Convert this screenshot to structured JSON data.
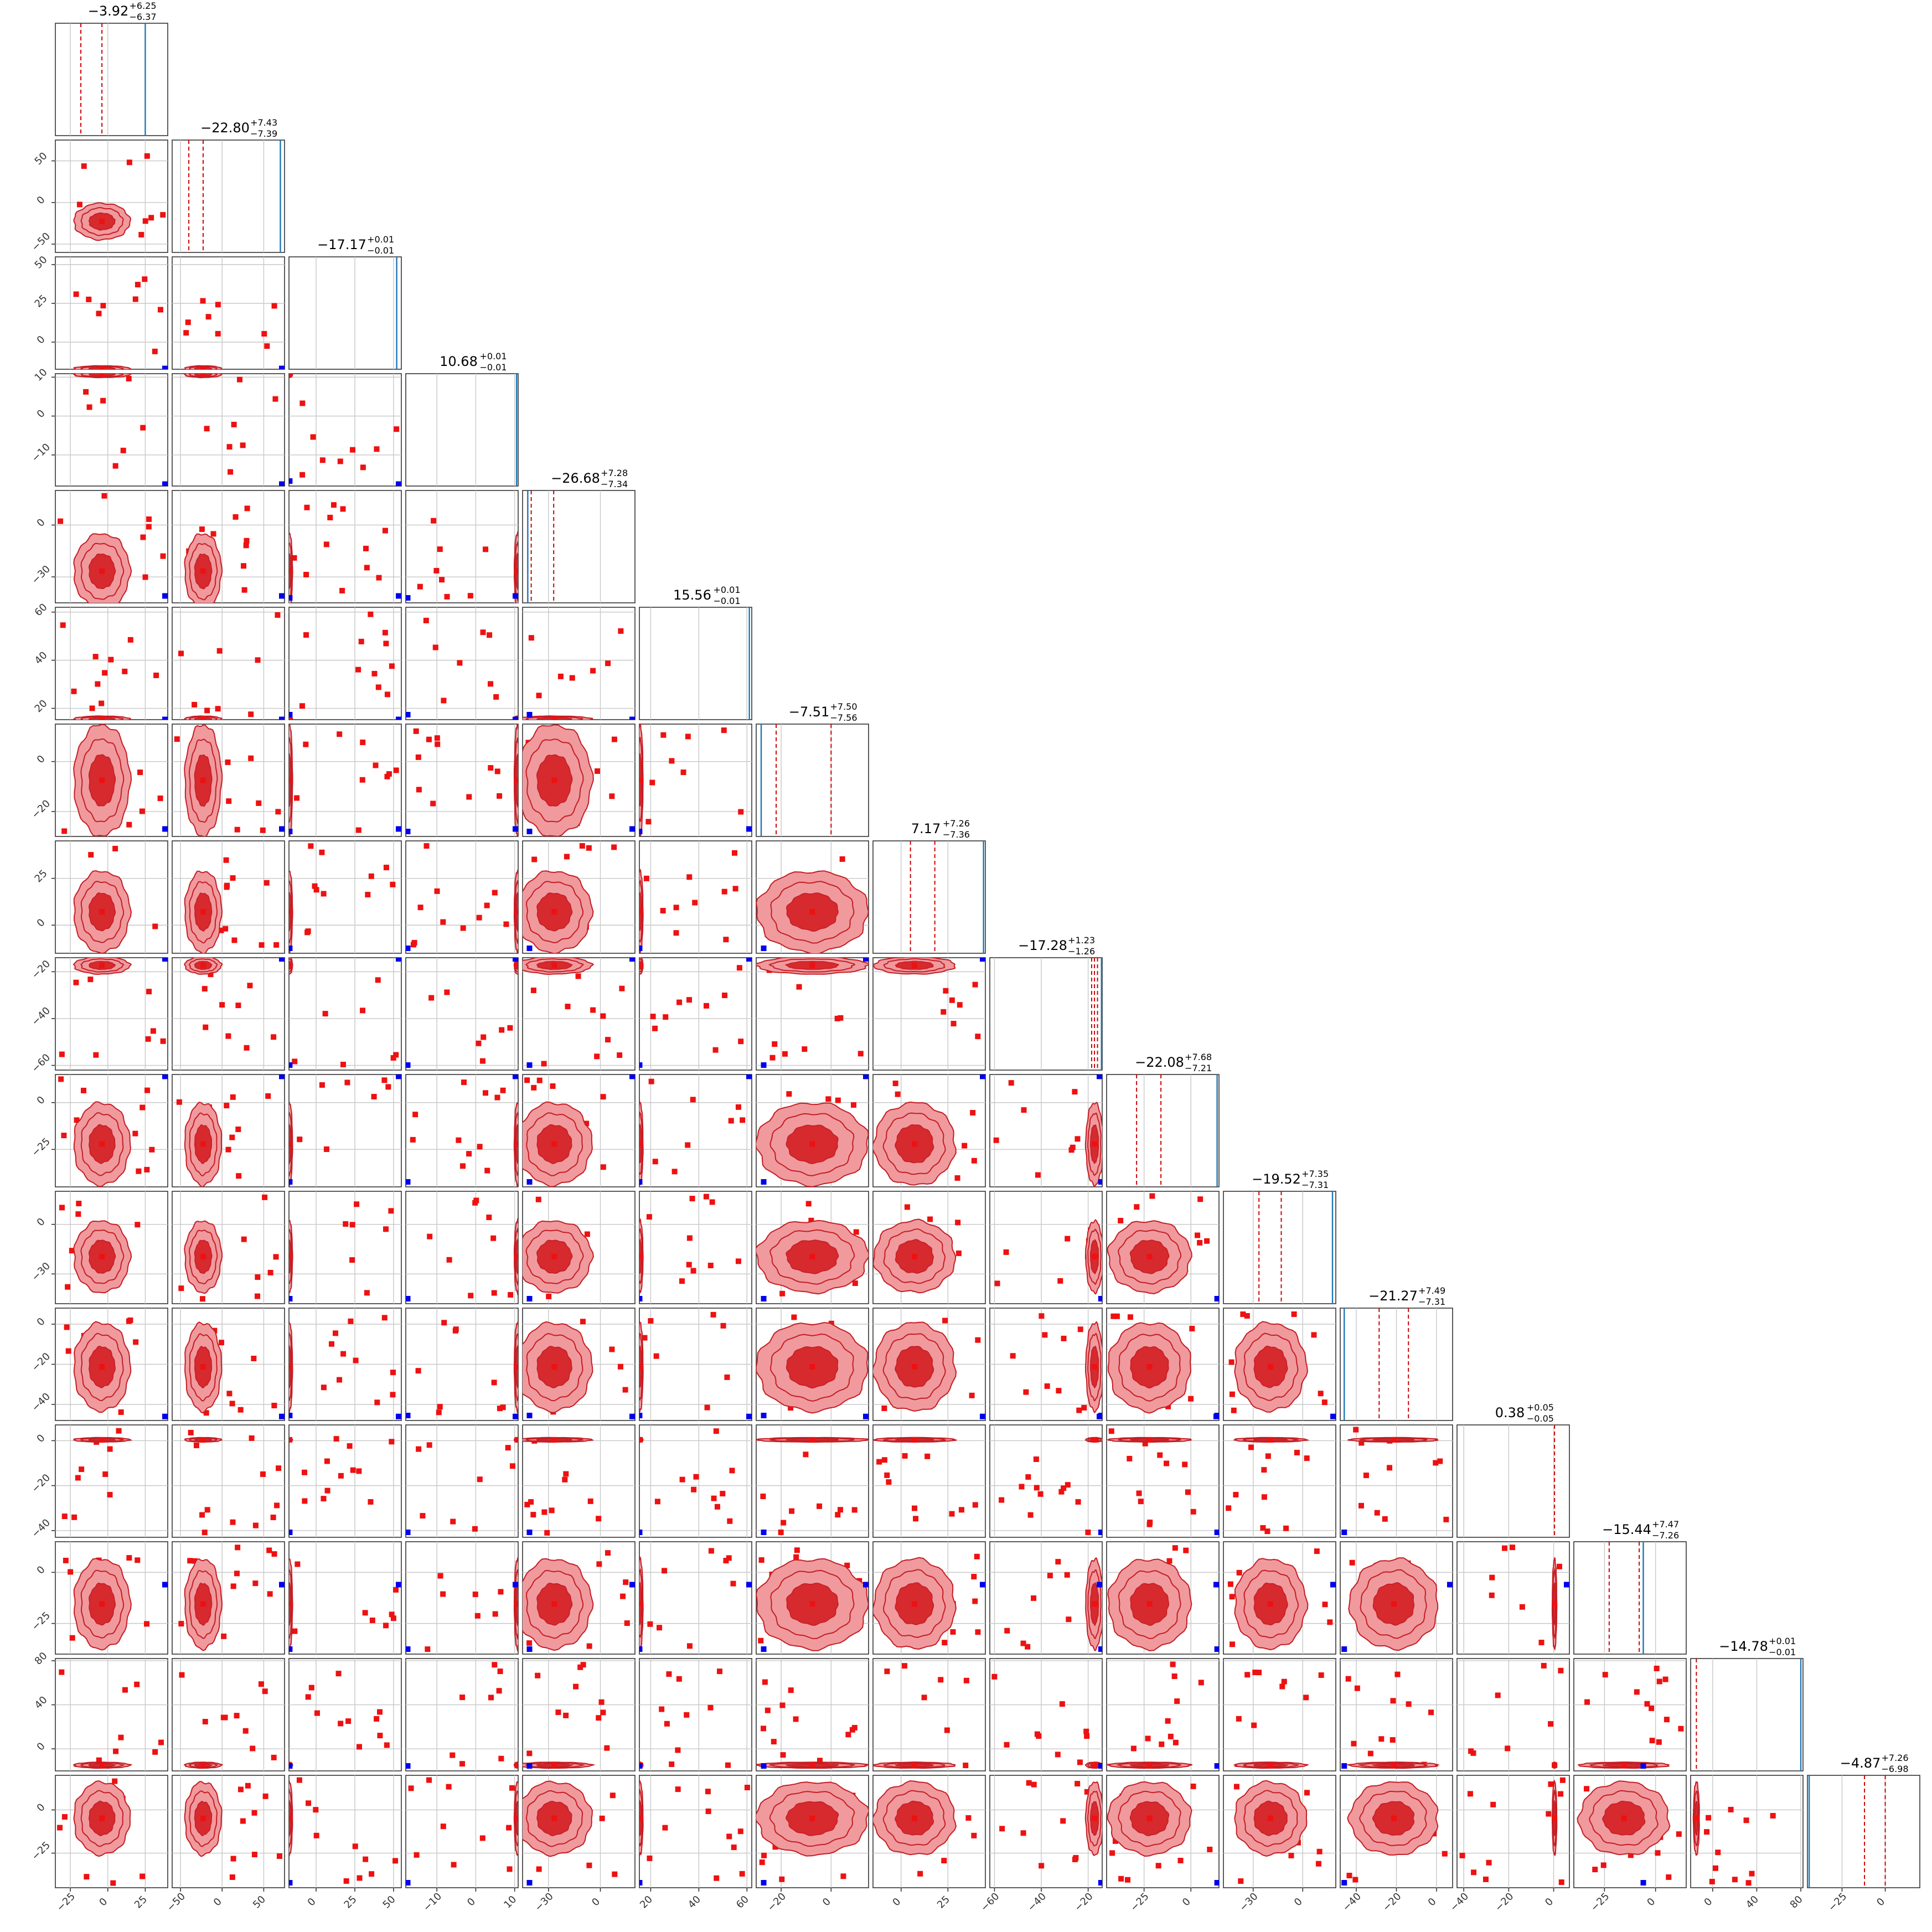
{
  "chart_data": {
    "type": "scatter",
    "subtype": "corner-plot",
    "n_params": 16,
    "grid": true,
    "colors": {
      "contour_line": "#c41e24",
      "contour_outer": "#f09a9e",
      "contour_inner": "#d62a2f",
      "point": "#ee1111",
      "truth": "#0000ee",
      "quantile_line": "#cc0000",
      "hist": "#1f77b4"
    },
    "params": [
      {
        "median": "−3.92",
        "plus": "+6.25",
        "minus": "−6.37",
        "lim": [
          -35,
          40
        ],
        "ticks": [
          -25,
          0,
          25
        ],
        "ticklabels": [
          "−25",
          "0",
          "25"
        ],
        "mode": "normal",
        "median_v": -3.92,
        "sd": 6.3,
        "q": [
          -18,
          -3.92
        ],
        "truth": null,
        "truth_hist": 25
      },
      {
        "median": "−22.80",
        "plus": "+7.43",
        "minus": "−7.39",
        "lim": [
          -60,
          75
        ],
        "ticks": [
          -50,
          0,
          50
        ],
        "ticklabels": [
          "−50",
          "0",
          "50"
        ],
        "mode": "normal",
        "median_v": -22.8,
        "sd": 7.4,
        "q": [
          -40,
          -22.8
        ],
        "truth": null,
        "truth_hist": 70
      },
      {
        "median": "−17.17",
        "plus": "+0.01",
        "minus": "−0.01",
        "lim": [
          -17.5,
          55
        ],
        "ticks": [
          0,
          25,
          50
        ],
        "ticklabels": [
          "0",
          "25",
          "50"
        ],
        "mode": "flat",
        "median_v": -17.17,
        "sd": 0.01,
        "q": [],
        "truth": -17.0,
        "truth_hist": 52
      },
      {
        "median": "10.68",
        "plus": "+0.01",
        "minus": "−0.01",
        "lim": [
          -18,
          10.9
        ],
        "ticks": [
          -10,
          0,
          10
        ],
        "ticklabels": [
          "−10",
          "0",
          "10"
        ],
        "mode": "flat",
        "median_v": 10.68,
        "sd": 0.01,
        "q": [],
        "truth": -17.5,
        "truth_hist": 10.5
      },
      {
        "median": "−26.68",
        "plus": "+7.28",
        "minus": "−7.34",
        "lim": [
          -45,
          20
        ],
        "ticks": [
          -30,
          0
        ],
        "ticklabels": [
          "−30",
          "0"
        ],
        "mode": "normal",
        "median_v": -26.68,
        "sd": 7.3,
        "q": [
          -42,
          -40,
          -27
        ],
        "truth": -41,
        "truth_hist": -42
      },
      {
        "median": "15.56",
        "plus": "+0.01",
        "minus": "−0.01",
        "lim": [
          15.3,
          62
        ],
        "ticks": [
          20,
          40,
          60
        ],
        "ticklabels": [
          "20",
          "40",
          "60"
        ],
        "mode": "flat",
        "median_v": 15.56,
        "sd": 0.01,
        "q": [],
        "truth": 15.4,
        "truth_hist": 61
      },
      {
        "median": "−7.51",
        "plus": "+7.50",
        "minus": "−7.56",
        "lim": [
          -30,
          15
        ],
        "ticks": [
          -20,
          0
        ],
        "ticklabels": [
          "−20",
          "0"
        ],
        "mode": "normal",
        "median_v": -7.51,
        "sd": 7.5,
        "q": [
          -28,
          -22,
          0
        ],
        "truth": -27,
        "truth_hist": -28
      },
      {
        "median": "7.17",
        "plus": "+7.26",
        "minus": "−7.36",
        "lim": [
          -15,
          45
        ],
        "ticks": [
          0,
          25
        ],
        "ticklabels": [
          "0",
          "25"
        ],
        "mode": "normal",
        "median_v": 7.17,
        "sd": 7.3,
        "q": [
          5,
          18
        ],
        "truth": null,
        "truth_hist": 44
      },
      {
        "median": "−17.28",
        "plus": "+1.23",
        "minus": "−1.26",
        "lim": [
          -62,
          -14
        ],
        "ticks": [
          -60,
          -40,
          -20
        ],
        "ticklabels": [
          "−60",
          "−40",
          "−20"
        ],
        "mode": "narrow",
        "median_v": -17.28,
        "sd": 1.25,
        "q": [
          -18.5,
          -17.3,
          -16
        ],
        "truth": -14.5,
        "truth_hist": -14.3
      },
      {
        "median": "−22.08",
        "plus": "+7.68",
        "minus": "−7.21",
        "lim": [
          -45,
          15
        ],
        "ticks": [
          -25,
          0
        ],
        "ticklabels": [
          "−25",
          "0"
        ],
        "mode": "normal",
        "median_v": -22.08,
        "sd": 7.4,
        "q": [
          -29,
          -16
        ],
        "truth": 14,
        "truth_hist": 14
      },
      {
        "median": "−19.52",
        "plus": "+7.35",
        "minus": "−7.31",
        "lim": [
          -48,
          20
        ],
        "ticks": [
          -30,
          0
        ],
        "ticklabels": [
          "−30",
          "0"
        ],
        "mode": "normal",
        "median_v": -19.52,
        "sd": 7.3,
        "q": [
          -26.5,
          -13
        ],
        "truth": null,
        "truth_hist": 18
      },
      {
        "median": "−21.27",
        "plus": "+7.49",
        "minus": "−7.31",
        "lim": [
          -48,
          8
        ],
        "ticks": [
          -40,
          -20,
          0
        ],
        "ticklabels": [
          "−40",
          "−20",
          "0"
        ],
        "mode": "normal",
        "median_v": -21.27,
        "sd": 7.4,
        "q": [
          -28.6,
          -14
        ],
        "truth": -46,
        "truth_hist": -46
      },
      {
        "median": "0.38",
        "plus": "+0.05",
        "minus": "−0.05",
        "lim": [
          -43,
          7
        ],
        "ticks": [
          -40,
          -20,
          0
        ],
        "ticklabels": [
          "−40",
          "−20",
          "0"
        ],
        "mode": "narrow",
        "median_v": 0.38,
        "sd": 0.05,
        "q": [
          0.38
        ],
        "truth": null,
        "truth_hist": null
      },
      {
        "median": "−15.44",
        "plus": "+7.47",
        "minus": "−7.26",
        "lim": [
          -40,
          15
        ],
        "ticks": [
          -25,
          0
        ],
        "ticklabels": [
          "−25",
          "0"
        ],
        "mode": "normal",
        "median_v": -15.44,
        "sd": 7.4,
        "q": [
          -22.7,
          -8
        ],
        "truth": -6,
        "truth_hist": -6
      },
      {
        "median": "−14.78",
        "plus": "+0.01",
        "minus": "−0.01",
        "lim": [
          -20,
          82
        ],
        "ticks": [
          0,
          40,
          80
        ],
        "ticklabels": [
          "0",
          "40",
          "80"
        ],
        "mode": "flat",
        "median_v": -14.78,
        "sd": 0.01,
        "q": [
          -14.78
        ],
        "truth": null,
        "truth_hist": 80
      },
      {
        "median": "−4.87",
        "plus": "+7.26",
        "minus": "−6.98",
        "lim": [
          -45,
          20
        ],
        "ticks": [
          -25,
          0
        ],
        "ticklabels": [
          "−25",
          "0"
        ],
        "mode": "normal",
        "median_v": -4.87,
        "sd": 7.1,
        "q": [
          -12,
          0
        ],
        "truth": null,
        "truth_hist": -44
      }
    ]
  }
}
